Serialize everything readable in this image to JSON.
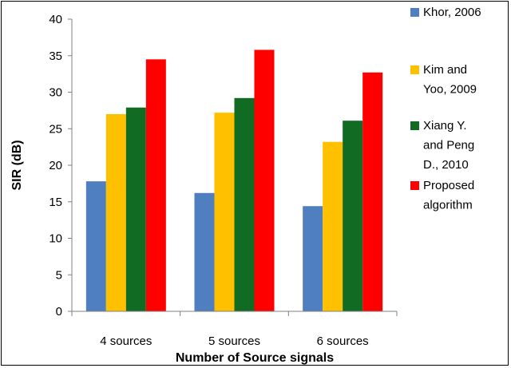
{
  "chart_data": {
    "type": "bar",
    "categories": [
      "4 sources",
      "5 sources",
      "6 sources"
    ],
    "series": [
      {
        "name": "Khor, 2006",
        "values": [
          17.8,
          16.2,
          14.4
        ],
        "color": "#4F7FBE",
        "legend_lines": [
          "Khor, 2006"
        ]
      },
      {
        "name": "Kim and Yoo, 2009",
        "values": [
          27.0,
          27.2,
          23.2
        ],
        "color": "#FFC000",
        "legend_lines": [
          "Kim and",
          "Yoo, 2009"
        ]
      },
      {
        "name": "Xiang Y. and Peng D., 2010",
        "values": [
          27.9,
          29.2,
          26.1
        ],
        "color": "#116B23",
        "legend_lines": [
          "Xiang Y.",
          "and Peng",
          "D., 2010"
        ]
      },
      {
        "name": "Proposed algorithm",
        "values": [
          34.5,
          35.8,
          32.7
        ],
        "color": "#FF0000",
        "legend_lines": [
          "Proposed",
          "algorithm"
        ]
      }
    ],
    "title": "",
    "xlabel": "Number of Source signals",
    "ylabel": "SIR (dB)",
    "ylim": [
      0,
      40
    ],
    "yticks": [
      "0",
      "5",
      "10",
      "15",
      "20",
      "25",
      "30",
      "35",
      "40"
    ],
    "grid": false,
    "legend_position": "right"
  }
}
